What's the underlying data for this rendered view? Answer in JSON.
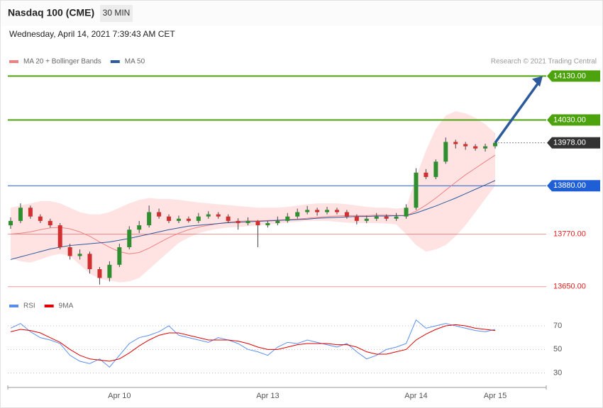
{
  "header": {
    "title": "Nasdaq 100 (CME)",
    "interval": "30 MIN",
    "timestamp": "Wednesday, April 14, 2021 7:39:43 AM CET",
    "attribution": "Research © 2021 Trading Central"
  },
  "chart_data": [
    {
      "type": "candlestick",
      "categories": [
        null,
        null,
        null,
        null,
        null,
        null,
        null,
        null,
        null,
        null,
        null,
        "Apr 10",
        null,
        null,
        null,
        null,
        null,
        null,
        null,
        null,
        null,
        null,
        null,
        null,
        null,
        null,
        "Apr 13",
        null,
        null,
        null,
        null,
        null,
        null,
        null,
        null,
        null,
        null,
        null,
        null,
        null,
        null,
        "Apr 14",
        null,
        null,
        null,
        null,
        null,
        null,
        null,
        "Apr 15"
      ],
      "open": [
        13790,
        13800,
        13830,
        13810,
        13800,
        13790,
        13740,
        13720,
        13725,
        13690,
        13670,
        13700,
        13740,
        13780,
        13790,
        13820,
        13810,
        13800,
        13805,
        13800,
        13810,
        13815,
        13810,
        13800,
        13795,
        13800,
        13790,
        13795,
        13800,
        13810,
        13820,
        13825,
        13820,
        13825,
        13820,
        13810,
        13800,
        13805,
        13810,
        13805,
        13810,
        13830,
        13910,
        13900,
        13935,
        13980,
        13975,
        13970,
        13965,
        13970
      ],
      "high": [
        13808,
        13840,
        13835,
        13815,
        13805,
        13795,
        13748,
        13735,
        13730,
        13695,
        13708,
        13748,
        13788,
        13800,
        13835,
        13828,
        13815,
        13812,
        13810,
        13818,
        13822,
        13820,
        13815,
        13806,
        13808,
        13802,
        13800,
        13810,
        13818,
        13828,
        13834,
        13830,
        13832,
        13830,
        13825,
        13815,
        13812,
        13818,
        13815,
        13818,
        13838,
        13920,
        13918,
        13940,
        13990,
        13985,
        13980,
        13975,
        13976,
        13982
      ],
      "low": [
        13782,
        13795,
        13805,
        13795,
        13785,
        13735,
        13712,
        13712,
        13680,
        13655,
        13662,
        13695,
        13735,
        13772,
        13785,
        13805,
        13795,
        13795,
        13796,
        13795,
        13805,
        13805,
        13795,
        13780,
        13790,
        13740,
        13785,
        13790,
        13796,
        13805,
        13815,
        13812,
        13815,
        13815,
        13805,
        13792,
        13795,
        13800,
        13800,
        13800,
        13805,
        13825,
        13895,
        13895,
        13930,
        13965,
        13962,
        13960,
        13958,
        13965
      ],
      "close": [
        13800,
        13830,
        13810,
        13800,
        13790,
        13740,
        13720,
        13725,
        13690,
        13670,
        13700,
        13740,
        13780,
        13790,
        13820,
        13810,
        13800,
        13805,
        13800,
        13810,
        13815,
        13810,
        13800,
        13795,
        13800,
        13790,
        13795,
        13800,
        13810,
        13820,
        13825,
        13820,
        13825,
        13820,
        13810,
        13800,
        13805,
        13810,
        13805,
        13810,
        13830,
        13910,
        13900,
        13935,
        13980,
        13975,
        13970,
        13965,
        13970,
        13978
      ],
      "up_color": "#2f8f2f",
      "down_color": "#d03030",
      "series": [
        {
          "name": "MA 20 + Bollinger Bands",
          "color": "#f08080",
          "values": [
            13770,
            13772,
            13775,
            13780,
            13784,
            13785,
            13782,
            13775,
            13765,
            13752,
            13740,
            13730,
            13725,
            13728,
            13738,
            13750,
            13762,
            13772,
            13780,
            13786,
            13790,
            13794,
            13797,
            13799,
            13800,
            13800,
            13801,
            13802,
            13803,
            13804,
            13806,
            13808,
            13810,
            13811,
            13812,
            13812,
            13812,
            13813,
            13813,
            13812,
            13812,
            13822,
            13836,
            13852,
            13870,
            13888,
            13905,
            13920,
            13935,
            13950
          ]
        },
        {
          "name": "MA 50",
          "color": "#2c5a9c",
          "values": [
            13712,
            13718,
            13724,
            13730,
            13736,
            13740,
            13744,
            13746,
            13748,
            13750,
            13752,
            13756,
            13760,
            13765,
            13770,
            13775,
            13780,
            13784,
            13788,
            13790,
            13792,
            13794,
            13796,
            13797,
            13798,
            13799,
            13800,
            13801,
            13802,
            13803,
            13804,
            13806,
            13807,
            13808,
            13809,
            13810,
            13810,
            13811,
            13811,
            13812,
            13812,
            13818,
            13826,
            13834,
            13843,
            13852,
            13862,
            13872,
            13882,
            13892
          ]
        }
      ],
      "bands": {
        "color": "#ffe3e3",
        "upper": [
          13830,
          13835,
          13840,
          13845,
          13845,
          13840,
          13830,
          13820,
          13815,
          13815,
          13820,
          13830,
          13840,
          13848,
          13852,
          13850,
          13850,
          13848,
          13845,
          13842,
          13840,
          13838,
          13836,
          13834,
          13832,
          13830,
          13830,
          13830,
          13832,
          13835,
          13838,
          13840,
          13840,
          13840,
          13838,
          13835,
          13832,
          13830,
          13830,
          13828,
          13830,
          13900,
          13960,
          14010,
          14040,
          14050,
          14045,
          14035,
          14020,
          14000
        ],
        "lower": [
          13715,
          13708,
          13705,
          13712,
          13720,
          13725,
          13720,
          13700,
          13680,
          13668,
          13664,
          13660,
          13662,
          13670,
          13690,
          13710,
          13730,
          13750,
          13762,
          13772,
          13778,
          13782,
          13785,
          13786,
          13788,
          13790,
          13792,
          13794,
          13796,
          13798,
          13800,
          13800,
          13800,
          13798,
          13796,
          13795,
          13795,
          13795,
          13794,
          13792,
          13770,
          13745,
          13730,
          13735,
          13745,
          13765,
          13790,
          13820,
          13850,
          13880
        ]
      },
      "levels": [
        {
          "value": 14130,
          "label": "14130.00",
          "color": "#4ca30d",
          "style": "box"
        },
        {
          "value": 14030,
          "label": "14030.00",
          "color": "#4ca30d",
          "style": "box"
        },
        {
          "value": 13978,
          "label": "13978.00",
          "color": "#333333",
          "style": "box-dotted"
        },
        {
          "value": 13880,
          "label": "13880.00",
          "color": "#1f5fd6",
          "style": "box"
        },
        {
          "value": 13770,
          "label": "13770.00",
          "color": "#e02020",
          "style": "text"
        },
        {
          "value": 13650,
          "label": "13650.00",
          "color": "#e02020",
          "style": "text"
        }
      ],
      "ylim": [
        13640,
        14150
      ]
    },
    {
      "type": "line",
      "series": [
        {
          "name": "RSI",
          "color": "#5b8def",
          "values": [
            68,
            72,
            65,
            60,
            58,
            55,
            45,
            40,
            38,
            42,
            35,
            45,
            55,
            60,
            62,
            65,
            70,
            62,
            60,
            58,
            56,
            60,
            58,
            55,
            50,
            48,
            45,
            52,
            56,
            55,
            58,
            56,
            54,
            52,
            55,
            48,
            42,
            45,
            50,
            52,
            55,
            75,
            68,
            70,
            72,
            70,
            68,
            66,
            65,
            67
          ]
        },
        {
          "name": "9MA",
          "color": "#e00000",
          "values": [
            65,
            67,
            66,
            64,
            60,
            56,
            50,
            45,
            42,
            41,
            40,
            42,
            47,
            53,
            58,
            62,
            64,
            64,
            62,
            60,
            58,
            58,
            58,
            57,
            55,
            52,
            50,
            50,
            52,
            54,
            55,
            55,
            55,
            54,
            54,
            52,
            48,
            46,
            46,
            48,
            50,
            58,
            63,
            67,
            70,
            71,
            70,
            68,
            67,
            66
          ]
        }
      ],
      "ylim": [
        22,
        79
      ],
      "yticks": [
        70,
        50,
        30
      ],
      "grid": true
    }
  ]
}
